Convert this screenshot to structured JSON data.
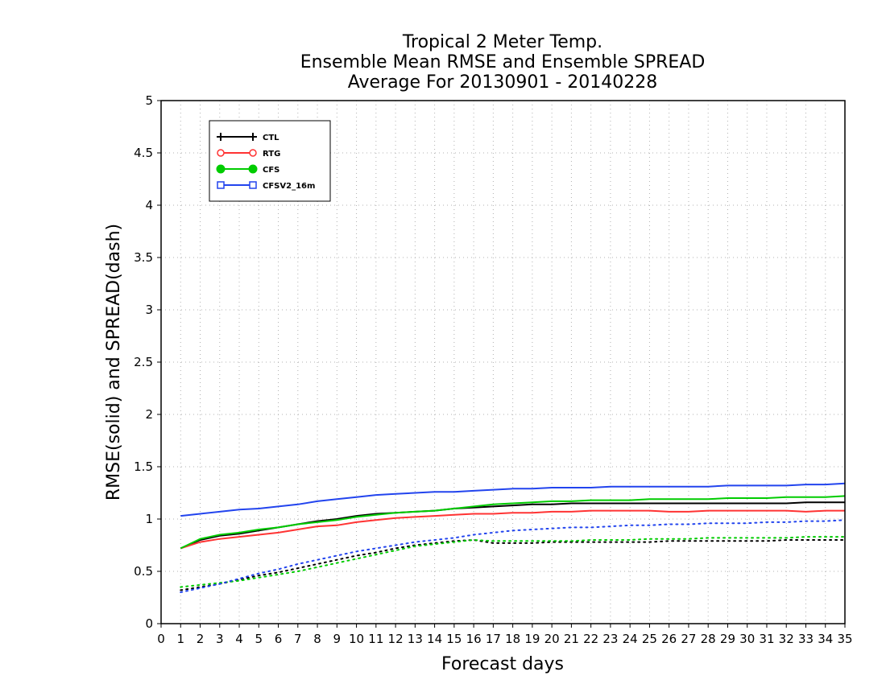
{
  "chart_data": {
    "type": "line",
    "title": [
      "Tropical 2 Meter Temp.",
      "Ensemble Mean RMSE and Ensemble SPREAD",
      "Average For 20130901 - 20140228"
    ],
    "xlabel": "Forecast days",
    "ylabel": "RMSE(solid) and SPREAD(dash)",
    "xlim": [
      0,
      35
    ],
    "ylim": [
      0,
      5
    ],
    "xticks": [
      "0",
      "1",
      "2",
      "3",
      "4",
      "5",
      "6",
      "7",
      "8",
      "9",
      "10",
      "11",
      "12",
      "13",
      "14",
      "15",
      "16",
      "17",
      "18",
      "19",
      "20",
      "21",
      "22",
      "23",
      "24",
      "25",
      "26",
      "27",
      "28",
      "29",
      "30",
      "31",
      "32",
      "33",
      "34",
      "35"
    ],
    "yticks": [
      "0",
      "0.5",
      "1",
      "1.5",
      "2",
      "2.5",
      "3",
      "3.5",
      "4",
      "4.5",
      "5"
    ],
    "grid": true,
    "legend_position": "top-left",
    "x": [
      1,
      2,
      3,
      4,
      5,
      6,
      7,
      8,
      9,
      10,
      11,
      12,
      13,
      14,
      15,
      16,
      17,
      18,
      19,
      20,
      21,
      22,
      23,
      24,
      25,
      26,
      27,
      28,
      29,
      30,
      31,
      32,
      33,
      34,
      35
    ],
    "series": [
      {
        "name": "CTL",
        "color": "#000000",
        "marker": "plus",
        "rmse": [
          0.72,
          0.8,
          0.84,
          0.86,
          0.89,
          0.92,
          0.95,
          0.98,
          1.0,
          1.03,
          1.05,
          1.06,
          1.07,
          1.08,
          1.1,
          1.11,
          1.12,
          1.13,
          1.14,
          1.14,
          1.15,
          1.15,
          1.15,
          1.15,
          1.15,
          1.15,
          1.15,
          1.15,
          1.15,
          1.15,
          1.15,
          1.15,
          1.16,
          1.16,
          1.16
        ],
        "spread": [
          0.32,
          0.35,
          0.38,
          0.42,
          0.46,
          0.49,
          0.53,
          0.57,
          0.61,
          0.65,
          0.68,
          0.72,
          0.75,
          0.77,
          0.79,
          0.8,
          0.77,
          0.77,
          0.77,
          0.78,
          0.78,
          0.78,
          0.78,
          0.78,
          0.78,
          0.79,
          0.79,
          0.79,
          0.79,
          0.79,
          0.79,
          0.8,
          0.8,
          0.8,
          0.8
        ]
      },
      {
        "name": "RTG",
        "color": "#ff3333",
        "marker": "circle-open",
        "rmse": [
          0.72,
          0.78,
          0.81,
          0.83,
          0.85,
          0.87,
          0.9,
          0.93,
          0.94,
          0.97,
          0.99,
          1.01,
          1.02,
          1.03,
          1.04,
          1.05,
          1.05,
          1.06,
          1.06,
          1.07,
          1.07,
          1.08,
          1.08,
          1.08,
          1.08,
          1.07,
          1.07,
          1.08,
          1.08,
          1.08,
          1.08,
          1.08,
          1.07,
          1.08,
          1.08
        ],
        "spread": []
      },
      {
        "name": "CFS",
        "color": "#00cc00",
        "marker": "circle-filled",
        "rmse": [
          0.72,
          0.81,
          0.85,
          0.87,
          0.9,
          0.92,
          0.95,
          0.97,
          0.99,
          1.02,
          1.04,
          1.06,
          1.07,
          1.08,
          1.1,
          1.12,
          1.14,
          1.15,
          1.16,
          1.17,
          1.17,
          1.18,
          1.18,
          1.18,
          1.19,
          1.19,
          1.19,
          1.19,
          1.2,
          1.2,
          1.2,
          1.21,
          1.21,
          1.21,
          1.22
        ],
        "spread": [
          0.35,
          0.37,
          0.39,
          0.41,
          0.44,
          0.47,
          0.5,
          0.54,
          0.58,
          0.62,
          0.66,
          0.7,
          0.74,
          0.76,
          0.78,
          0.8,
          0.79,
          0.79,
          0.79,
          0.79,
          0.79,
          0.8,
          0.8,
          0.8,
          0.81,
          0.81,
          0.81,
          0.82,
          0.82,
          0.82,
          0.82,
          0.82,
          0.83,
          0.83,
          0.83
        ]
      },
      {
        "name": "CFSV2_16m",
        "color": "#2244ee",
        "marker": "square-open",
        "rmse": [
          1.03,
          1.05,
          1.07,
          1.09,
          1.1,
          1.12,
          1.14,
          1.17,
          1.19,
          1.21,
          1.23,
          1.24,
          1.25,
          1.26,
          1.26,
          1.27,
          1.28,
          1.29,
          1.29,
          1.3,
          1.3,
          1.3,
          1.31,
          1.31,
          1.31,
          1.31,
          1.31,
          1.31,
          1.32,
          1.32,
          1.32,
          1.32,
          1.33,
          1.33,
          1.34
        ],
        "spread": [
          0.3,
          0.34,
          0.38,
          0.43,
          0.48,
          0.52,
          0.57,
          0.61,
          0.65,
          0.69,
          0.72,
          0.75,
          0.78,
          0.8,
          0.82,
          0.85,
          0.87,
          0.89,
          0.9,
          0.91,
          0.92,
          0.92,
          0.93,
          0.94,
          0.94,
          0.95,
          0.95,
          0.96,
          0.96,
          0.96,
          0.97,
          0.97,
          0.98,
          0.98,
          0.99
        ]
      }
    ]
  }
}
